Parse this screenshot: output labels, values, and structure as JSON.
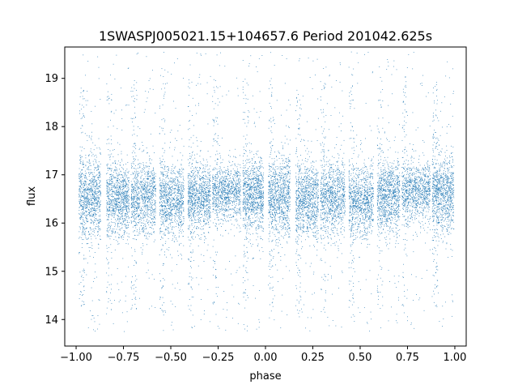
{
  "chart_data": {
    "type": "scatter",
    "title": "1SWASPJ005021.15+104657.6 Period 201042.625s",
    "xlabel": "phase",
    "ylabel": "flux",
    "xlim": [
      -1.06,
      1.06
    ],
    "ylim": [
      13.45,
      19.65
    ],
    "x_ticks": [
      -1.0,
      -0.75,
      -0.5,
      -0.25,
      0.0,
      0.25,
      0.5,
      0.75,
      1.0
    ],
    "x_tick_labels": [
      "−1.00",
      "−0.75",
      "−0.50",
      "−0.25",
      "0.00",
      "0.25",
      "0.50",
      "0.75",
      "1.00"
    ],
    "y_ticks": [
      14,
      15,
      16,
      17,
      18,
      19
    ],
    "y_tick_labels": [
      "14",
      "15",
      "16",
      "17",
      "18",
      "19"
    ],
    "grid": false,
    "point_color": "#1f77b4",
    "series": [
      {
        "x_range": [
          -1.0,
          1.0
        ],
        "clusters": [
          {
            "x_from": -0.985,
            "x_to": -0.87,
            "y_center": 16.55,
            "y_spread": 0.42
          },
          {
            "x_from": -0.84,
            "x_to": -0.72,
            "y_center": 16.5,
            "y_spread": 0.38
          },
          {
            "x_from": -0.71,
            "x_to": -0.58,
            "y_center": 16.55,
            "y_spread": 0.38
          },
          {
            "x_from": -0.56,
            "x_to": -0.43,
            "y_center": 16.45,
            "y_spread": 0.36
          },
          {
            "x_from": -0.41,
            "x_to": -0.29,
            "y_center": 16.55,
            "y_spread": 0.36
          },
          {
            "x_from": -0.28,
            "x_to": -0.13,
            "y_center": 16.65,
            "y_spread": 0.3
          },
          {
            "x_from": -0.12,
            "x_to": -0.01,
            "y_center": 16.6,
            "y_spread": 0.38
          },
          {
            "x_from": 0.015,
            "x_to": 0.13,
            "y_center": 16.55,
            "y_spread": 0.42
          },
          {
            "x_from": 0.16,
            "x_to": 0.28,
            "y_center": 16.5,
            "y_spread": 0.38
          },
          {
            "x_from": 0.29,
            "x_to": 0.42,
            "y_center": 16.55,
            "y_spread": 0.38
          },
          {
            "x_from": 0.44,
            "x_to": 0.57,
            "y_center": 16.45,
            "y_spread": 0.36
          },
          {
            "x_from": 0.59,
            "x_to": 0.71,
            "y_center": 16.55,
            "y_spread": 0.36
          },
          {
            "x_from": 0.72,
            "x_to": 0.87,
            "y_center": 16.65,
            "y_spread": 0.3
          },
          {
            "x_from": 0.88,
            "x_to": 0.995,
            "y_center": 16.6,
            "y_spread": 0.38
          }
        ],
        "y_outlier_range": [
          13.75,
          19.55
        ]
      }
    ]
  }
}
